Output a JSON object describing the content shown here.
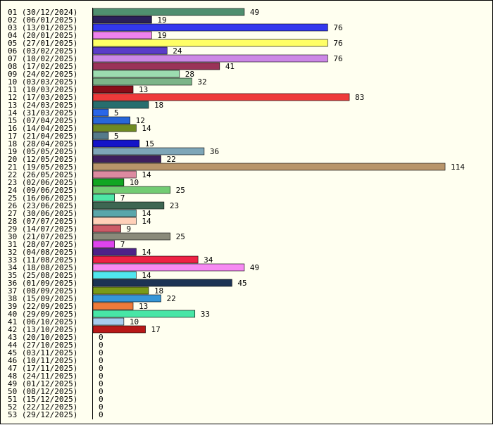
{
  "chart_data": {
    "type": "bar",
    "orientation": "horizontal",
    "title": "",
    "xlabel": "",
    "ylabel": "",
    "grid": false,
    "legend": "none",
    "categories": [
      "01 (30/12/2024)",
      "02 (06/01/2025)",
      "03 (13/01/2025)",
      "04 (20/01/2025)",
      "05 (27/01/2025)",
      "06 (03/02/2025)",
      "07 (10/02/2025)",
      "08 (17/02/2025)",
      "09 (24/02/2025)",
      "10 (03/03/2025)",
      "11 (10/03/2025)",
      "12 (17/03/2025)",
      "13 (24/03/2025)",
      "14 (31/03/2025)",
      "15 (07/04/2025)",
      "16 (14/04/2025)",
      "17 (21/04/2025)",
      "18 (28/04/2025)",
      "19 (05/05/2025)",
      "20 (12/05/2025)",
      "21 (19/05/2025)",
      "22 (26/05/2025)",
      "23 (02/06/2025)",
      "24 (09/06/2025)",
      "25 (16/06/2025)",
      "26 (23/06/2025)",
      "27 (30/06/2025)",
      "28 (07/07/2025)",
      "29 (14/07/2025)",
      "30 (21/07/2025)",
      "31 (28/07/2025)",
      "32 (04/08/2025)",
      "33 (11/08/2025)",
      "34 (18/08/2025)",
      "35 (25/08/2025)",
      "36 (01/09/2025)",
      "37 (08/09/2025)",
      "38 (15/09/2025)",
      "39 (22/09/2025)",
      "40 (29/09/2025)",
      "41 (06/10/2025)",
      "42 (13/10/2025)",
      "43 (20/10/2025)",
      "44 (27/10/2025)",
      "45 (03/11/2025)",
      "46 (10/11/2025)",
      "47 (17/11/2025)",
      "48 (24/11/2025)",
      "49 (01/12/2025)",
      "50 (08/12/2025)",
      "51 (15/12/2025)",
      "52 (22/12/2025)",
      "53 (29/12/2025)"
    ],
    "values": [
      49,
      19,
      76,
      19,
      76,
      24,
      76,
      41,
      28,
      32,
      13,
      83,
      18,
      5,
      12,
      14,
      5,
      15,
      36,
      22,
      114,
      14,
      10,
      25,
      7,
      23,
      14,
      14,
      9,
      25,
      7,
      14,
      34,
      49,
      14,
      45,
      18,
      22,
      13,
      33,
      10,
      17,
      0,
      0,
      0,
      0,
      0,
      0,
      0,
      0,
      0,
      0,
      0
    ],
    "colors": [
      "#4f8f6f",
      "#2a1f5a",
      "#3338ee",
      "#ee82ee",
      "#ffff66",
      "#5a3cc8",
      "#cc88e6",
      "#9a3358",
      "#9cdcb0",
      "#7cb488",
      "#8a0c18",
      "#ee3a3a",
      "#276e6e",
      "#2a66e8",
      "#2866d8",
      "#6e8a22",
      "#557a8a",
      "#1414c8",
      "#7ea6b8",
      "#3e1f5e",
      "#b8956a",
      "#dc8aa0",
      "#12a622",
      "#72cc72",
      "#4ee6a6",
      "#3e6652",
      "#5aa6aa",
      "#ffd0b8",
      "#cc5a66",
      "#8a8a7a",
      "#de44ee",
      "#4e2288",
      "#ee2244",
      "#f68af2",
      "#50e6ee",
      "#1c3354",
      "#7a9a18",
      "#3696d8",
      "#ee7a3a",
      "#48e6a6",
      "#a8ccee",
      "#b81818",
      "#ffffff",
      "#ffffff",
      "#ffffff",
      "#ffffff",
      "#ffffff",
      "#ffffff",
      "#ffffff",
      "#ffffff",
      "#ffffff",
      "#ffffff",
      "#ffffff"
    ]
  }
}
